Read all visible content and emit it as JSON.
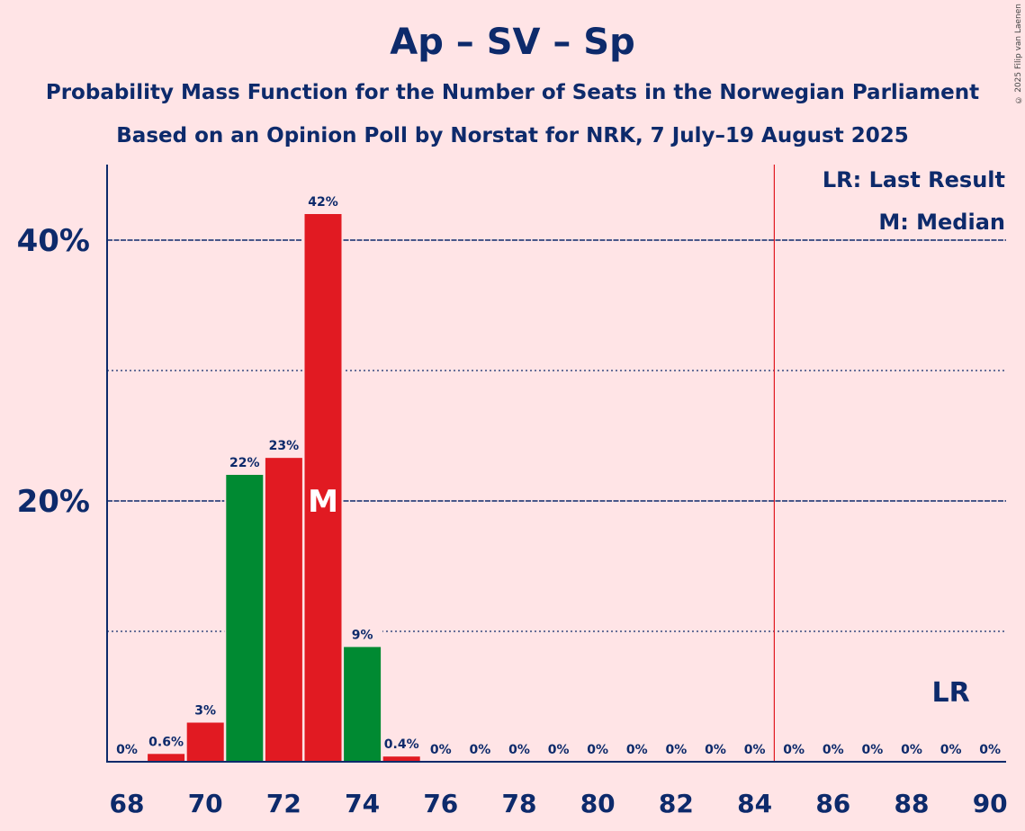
{
  "title": "Ap – SV – Sp",
  "subtitle_1": "Probability Mass Function for the Number of Seats in the Norwegian Parliament",
  "subtitle_2": "Based on an Opinion Poll by Norstat for NRK, 7 July–19 August 2025",
  "copyright": "© 2025 Filip van Laenen",
  "legend": {
    "last_result": "LR: Last Result",
    "median": "M: Median"
  },
  "colors": {
    "background": "#FFE4E6",
    "text": "#0D2A6B",
    "red_bar": "#E11A22",
    "green_bar": "#008A32",
    "majority_line": "#E11A22"
  },
  "chart_data": {
    "type": "bar",
    "title": "Ap – SV – Sp",
    "xlabel": "",
    "ylabel": "",
    "ylim": [
      0,
      46
    ],
    "x": [
      68,
      69,
      70,
      71,
      72,
      73,
      74,
      75,
      76,
      77,
      78,
      79,
      80,
      81,
      82,
      83,
      84,
      85,
      86,
      87,
      88,
      89,
      90
    ],
    "values": [
      0,
      0.6,
      3,
      22,
      23.3,
      42,
      8.8,
      0.4,
      0,
      0,
      0,
      0,
      0,
      0,
      0,
      0,
      0,
      0,
      0,
      0,
      0,
      0,
      0
    ],
    "labels": [
      "0%",
      "0.6%",
      "3%",
      "22%",
      "23%",
      "42%",
      "9%",
      "0.4%",
      "0%",
      "0%",
      "0%",
      "0%",
      "0%",
      "0%",
      "0%",
      "0%",
      "0%",
      "0%",
      "0%",
      "0%",
      "0%",
      "0%",
      "0%"
    ],
    "bar_colors": [
      "red",
      "red",
      "red",
      "green",
      "red",
      "red",
      "green",
      "red",
      "red",
      "red",
      "red",
      "red",
      "red",
      "red",
      "red",
      "red",
      "red",
      "red",
      "red",
      "red",
      "red",
      "red",
      "red"
    ],
    "x_tick_labels": [
      "68",
      "70",
      "72",
      "74",
      "76",
      "78",
      "80",
      "82",
      "84",
      "86",
      "88",
      "90"
    ],
    "y_tick_labels": [
      {
        "value": 20,
        "label": "20%"
      },
      {
        "value": 40,
        "label": "40%"
      }
    ],
    "minor_gridlines": [
      10,
      30
    ],
    "majority_threshold": 84.5,
    "median": {
      "x": 73,
      "label": "M"
    },
    "last_result": {
      "x": 89,
      "label": "LR"
    },
    "grid": true,
    "legend_position": "top-right"
  }
}
